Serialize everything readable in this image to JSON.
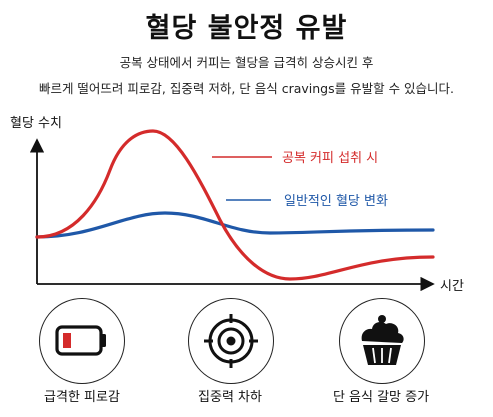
{
  "header": {
    "title": "혈당 불안정 유발",
    "line1": "공복 상태에서 커피는 혈당을 급격히 상승시킨 후",
    "line2": "빠르게 떨어뜨려 피로감, 집중력 저하, 단 음식 cravings를 유발할 수 있습니다."
  },
  "chart": {
    "ylabel": "혈당 수치",
    "xlabel": "시간",
    "series": [
      {
        "name": "공복 커피 섭취 시",
        "color": "#d42b2b"
      },
      {
        "name": "일반적인 혈당 변화",
        "color": "#1f58a8"
      }
    ]
  },
  "effects": [
    {
      "label": "급격한 피로감",
      "icon": "low-battery-icon"
    },
    {
      "label": "집중력 차하",
      "icon": "target-icon"
    },
    {
      "label": "단 음식 갈망 증가",
      "icon": "cupcake-icon"
    }
  ],
  "colors": {
    "accent_red": "#d42b2b",
    "accent_blue": "#1f58a8"
  }
}
